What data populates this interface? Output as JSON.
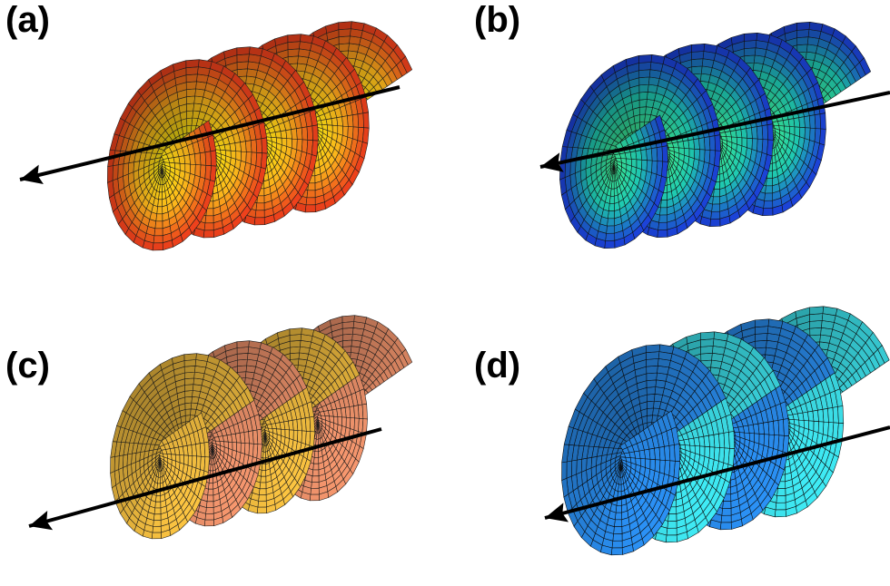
{
  "panels": [
    {
      "id": "a",
      "label": "(a)",
      "style": "radial-gradient",
      "colors": {
        "center": "#f4f00e",
        "mid": "#f7b21b",
        "edge": "#e8341b",
        "grid": "#1a1a1a"
      }
    },
    {
      "id": "b",
      "label": "(b)",
      "style": "radial-gradient",
      "colors": {
        "center": "#45ee84",
        "mid": "#1ec6b0",
        "edge": "#1b34d8",
        "grid": "#101010"
      }
    },
    {
      "id": "c",
      "label": "(c)",
      "style": "alternating-turns",
      "colors": {
        "turn_a": "#f6c040",
        "turn_b": "#f1946c",
        "grid": "#1a1a1a"
      }
    },
    {
      "id": "d",
      "label": "(d)",
      "style": "alternating-turns",
      "colors": {
        "turn_a": "#2a8ef0",
        "turn_b": "#3ee6f0",
        "grid": "#0a0a0a"
      }
    }
  ],
  "axis_arrow": {
    "color": "#000000"
  },
  "helix_turns": 4
}
